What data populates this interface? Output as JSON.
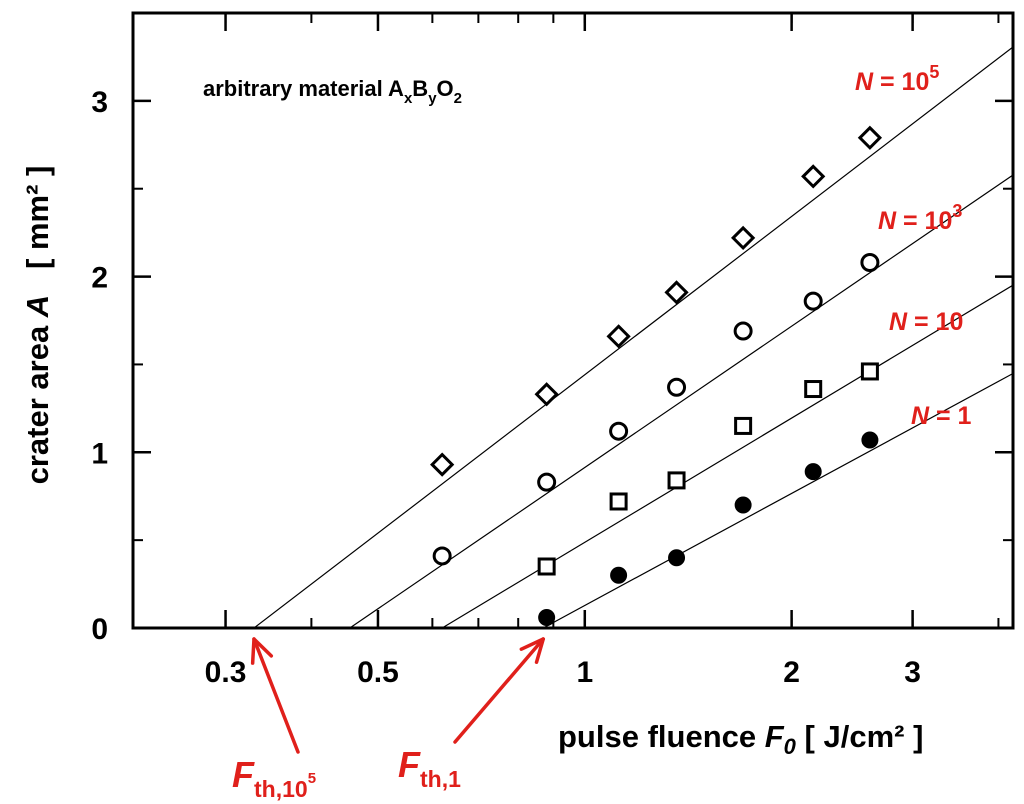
{
  "chart_data": {
    "type": "scatter",
    "title": "",
    "annotation": {
      "text": "arbitrary material A",
      "sub_x": "x",
      "mid_B": "B",
      "sub_y": "y",
      "mid_O": "O",
      "sub_2": "2"
    },
    "xlabel": {
      "main": "pulse fluence ",
      "var": "F",
      "var_sub": "0",
      "unit": " [ J/cm² ]"
    },
    "ylabel": {
      "main": "crater area ",
      "var": "A",
      "unit": "   [ mm² ]"
    },
    "x_scale": "log",
    "xlim": [
      0.22,
      4.2
    ],
    "ylim": [
      0,
      3.5
    ],
    "x_ticks": [
      {
        "value": 0.3,
        "label": "0.3"
      },
      {
        "value": 0.5,
        "label": "0.5"
      },
      {
        "value": 1,
        "label": "1"
      },
      {
        "value": 2,
        "label": "2"
      },
      {
        "value": 3,
        "label": "3"
      }
    ],
    "y_ticks": [
      {
        "value": 0,
        "label": "0"
      },
      {
        "value": 1,
        "label": "1"
      },
      {
        "value": 2,
        "label": "2"
      },
      {
        "value": 3,
        "label": "3"
      }
    ],
    "grid": false,
    "label_color": "#e0201b",
    "series": [
      {
        "name": "N = 10^5",
        "label_prefix": "N",
        "label_eq": " = 10",
        "label_sup": "5",
        "marker": "diamond",
        "x": [
          0.62,
          0.88,
          1.12,
          1.36,
          1.7,
          2.15,
          2.6
        ],
        "y": [
          0.93,
          1.33,
          1.66,
          1.91,
          2.22,
          2.57,
          2.79
        ],
        "fit": {
          "threshold": 0.33,
          "slope": 1.3
        }
      },
      {
        "name": "N = 10^3",
        "label_prefix": "N",
        "label_eq": " = 10",
        "label_sup": "3",
        "marker": "circle",
        "x": [
          0.62,
          0.88,
          1.12,
          1.36,
          1.7,
          2.15,
          2.6
        ],
        "y": [
          0.41,
          0.83,
          1.12,
          1.37,
          1.69,
          1.86,
          2.08
        ],
        "fit": {
          "threshold": 0.455,
          "slope": 1.16
        }
      },
      {
        "name": "N = 10",
        "label_prefix": "N",
        "label_eq": " = 10",
        "label_sup": "",
        "marker": "square",
        "x": [
          0.88,
          1.12,
          1.36,
          1.7,
          2.15,
          2.6
        ],
        "y": [
          0.35,
          0.72,
          0.84,
          1.15,
          1.36,
          1.46
        ],
        "fit": {
          "threshold": 0.62,
          "slope": 1.02
        }
      },
      {
        "name": "N = 1",
        "label_prefix": "N",
        "label_eq": " = 1",
        "label_sup": "",
        "marker": "filled-circle",
        "x": [
          0.88,
          1.12,
          1.36,
          1.7,
          2.15,
          2.6
        ],
        "y": [
          0.06,
          0.3,
          0.4,
          0.7,
          0.89,
          1.07
        ],
        "fit": {
          "threshold": 0.87,
          "slope": 0.92
        }
      }
    ],
    "threshold_arrows": [
      {
        "label_main": "F",
        "label_sub": "th,10",
        "label_sup": "5",
        "x_value": 0.33
      },
      {
        "label_main": "F",
        "label_sub": "th,1",
        "label_sup": "",
        "x_value": 0.87
      }
    ]
  }
}
